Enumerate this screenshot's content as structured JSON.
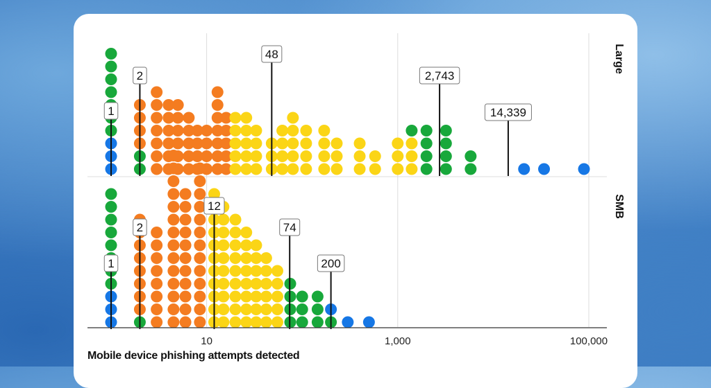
{
  "chart_data": {
    "type": "dot-histogram",
    "xlabel": "Mobile device phishing attempts detected",
    "x_scale": "log10",
    "xlim": [
      1,
      100000
    ],
    "x_ticks": [
      {
        "value": 10,
        "label": "10"
      },
      {
        "value": 1000,
        "label": "1,000"
      },
      {
        "value": 100000,
        "label": "100,000"
      }
    ],
    "colors": {
      "green": "#18a83b",
      "blue": "#1677e5",
      "orange": "#f47c20",
      "yellow": "#fbd516",
      "gridline": "#dcdcdc",
      "axis": "#333333",
      "marker": "#111111"
    },
    "panels": [
      {
        "name": "Large",
        "markers": [
          {
            "value": 1,
            "label": "1"
          },
          {
            "value": 2,
            "label": "2"
          },
          {
            "value": 48,
            "label": "48"
          },
          {
            "value": 2743,
            "label": "2,743"
          },
          {
            "value": 14339,
            "label": "14,339"
          }
        ],
        "columns": [
          {
            "x": 1,
            "stack": [
              "blue",
              "blue",
              "blue",
              "green",
              "green",
              "green",
              "green",
              "green",
              "green",
              "green"
            ]
          },
          {
            "x": 2,
            "stack": [
              "green",
              "green",
              "orange",
              "orange",
              "orange",
              "orange"
            ]
          },
          {
            "x": 3,
            "stack": [
              "orange",
              "orange",
              "orange",
              "orange",
              "orange",
              "orange",
              "orange"
            ]
          },
          {
            "x": 4,
            "stack": [
              "orange",
              "orange",
              "orange",
              "orange",
              "orange",
              "orange"
            ]
          },
          {
            "x": 5,
            "stack": [
              "orange",
              "orange",
              "orange",
              "orange",
              "orange",
              "orange"
            ]
          },
          {
            "x": 6.5,
            "stack": [
              "orange",
              "orange",
              "orange",
              "orange",
              "orange"
            ]
          },
          {
            "x": 8,
            "stack": [
              "orange",
              "orange",
              "orange",
              "orange"
            ]
          },
          {
            "x": 10,
            "stack": [
              "orange",
              "orange",
              "orange",
              "orange"
            ]
          },
          {
            "x": 13,
            "stack": [
              "orange",
              "orange",
              "orange",
              "orange",
              "orange",
              "orange",
              "orange"
            ]
          },
          {
            "x": 16,
            "stack": [
              "orange",
              "orange",
              "orange",
              "orange",
              "orange"
            ]
          },
          {
            "x": 20,
            "stack": [
              "yellow",
              "yellow",
              "yellow",
              "yellow",
              "yellow"
            ]
          },
          {
            "x": 26,
            "stack": [
              "yellow",
              "yellow",
              "yellow",
              "yellow",
              "yellow"
            ]
          },
          {
            "x": 33,
            "stack": [
              "yellow",
              "yellow",
              "yellow",
              "yellow"
            ]
          },
          {
            "x": 48,
            "stack": [
              "yellow",
              "yellow",
              "yellow"
            ]
          },
          {
            "x": 62,
            "stack": [
              "yellow",
              "yellow",
              "yellow",
              "yellow"
            ]
          },
          {
            "x": 80,
            "stack": [
              "yellow",
              "yellow",
              "yellow",
              "yellow",
              "yellow"
            ]
          },
          {
            "x": 110,
            "stack": [
              "yellow",
              "yellow",
              "yellow",
              "yellow"
            ]
          },
          {
            "x": 170,
            "stack": [
              "yellow",
              "yellow",
              "yellow",
              "yellow"
            ]
          },
          {
            "x": 230,
            "stack": [
              "yellow",
              "yellow",
              "yellow"
            ]
          },
          {
            "x": 400,
            "stack": [
              "yellow",
              "yellow",
              "yellow"
            ]
          },
          {
            "x": 580,
            "stack": [
              "yellow",
              "yellow"
            ]
          },
          {
            "x": 1000,
            "stack": [
              "yellow",
              "yellow",
              "yellow"
            ]
          },
          {
            "x": 1400,
            "stack": [
              "yellow",
              "yellow",
              "yellow",
              "green"
            ]
          },
          {
            "x": 2000,
            "stack": [
              "green",
              "green",
              "green",
              "green"
            ]
          },
          {
            "x": 3200,
            "stack": [
              "green",
              "green",
              "green",
              "green"
            ]
          },
          {
            "x": 5800,
            "stack": [
              "green",
              "green"
            ]
          },
          {
            "x": 21000,
            "stack": [
              "blue"
            ]
          },
          {
            "x": 34000,
            "stack": [
              "blue"
            ]
          },
          {
            "x": 89000,
            "stack": [
              "blue"
            ]
          }
        ]
      },
      {
        "name": "SMB",
        "markers": [
          {
            "value": 1,
            "label": "1"
          },
          {
            "value": 2,
            "label": "2"
          },
          {
            "value": 12,
            "label": "12"
          },
          {
            "value": 74,
            "label": "74"
          },
          {
            "value": 200,
            "label": "200"
          }
        ],
        "columns": [
          {
            "x": 1,
            "stack": [
              "blue",
              "blue",
              "blue",
              "green",
              "green",
              "green",
              "green",
              "green",
              "green",
              "green",
              "green"
            ]
          },
          {
            "x": 2,
            "stack": [
              "green",
              "orange",
              "orange",
              "orange",
              "orange",
              "orange",
              "orange",
              "orange",
              "orange"
            ]
          },
          {
            "x": 3,
            "stack": [
              "orange",
              "orange",
              "orange",
              "orange",
              "orange",
              "orange",
              "orange",
              "orange"
            ]
          },
          {
            "x": 4.5,
            "stack": [
              "orange",
              "orange",
              "orange",
              "orange",
              "orange",
              "orange",
              "orange",
              "orange",
              "orange",
              "orange",
              "orange",
              "orange",
              "orange",
              "orange"
            ]
          },
          {
            "x": 6,
            "stack": [
              "orange",
              "orange",
              "orange",
              "orange",
              "orange",
              "orange",
              "orange",
              "orange",
              "orange",
              "orange",
              "orange"
            ]
          },
          {
            "x": 8.5,
            "stack": [
              "orange",
              "orange",
              "orange",
              "orange",
              "orange",
              "orange",
              "orange",
              "orange",
              "orange",
              "orange",
              "orange",
              "orange",
              "orange"
            ]
          },
          {
            "x": 12,
            "stack": [
              "yellow",
              "yellow",
              "yellow",
              "yellow",
              "yellow",
              "yellow",
              "yellow",
              "yellow",
              "yellow",
              "yellow",
              "yellow"
            ]
          },
          {
            "x": 15,
            "stack": [
              "yellow",
              "yellow",
              "yellow",
              "yellow",
              "yellow",
              "yellow",
              "yellow",
              "yellow",
              "yellow",
              "yellow"
            ]
          },
          {
            "x": 20,
            "stack": [
              "yellow",
              "yellow",
              "yellow",
              "yellow",
              "yellow",
              "yellow",
              "yellow",
              "yellow",
              "yellow"
            ]
          },
          {
            "x": 26,
            "stack": [
              "yellow",
              "yellow",
              "yellow",
              "yellow",
              "yellow",
              "yellow",
              "yellow",
              "yellow"
            ]
          },
          {
            "x": 33,
            "stack": [
              "yellow",
              "yellow",
              "yellow",
              "yellow",
              "yellow",
              "yellow",
              "yellow"
            ]
          },
          {
            "x": 42,
            "stack": [
              "yellow",
              "yellow",
              "yellow",
              "yellow",
              "yellow",
              "yellow"
            ]
          },
          {
            "x": 55,
            "stack": [
              "yellow",
              "yellow",
              "yellow",
              "yellow",
              "yellow"
            ]
          },
          {
            "x": 75,
            "stack": [
              "green",
              "green",
              "green",
              "green"
            ]
          },
          {
            "x": 100,
            "stack": [
              "green",
              "green",
              "green"
            ]
          },
          {
            "x": 145,
            "stack": [
              "green",
              "green",
              "green"
            ]
          },
          {
            "x": 200,
            "stack": [
              "green",
              "blue"
            ]
          },
          {
            "x": 300,
            "stack": [
              "blue"
            ]
          },
          {
            "x": 500,
            "stack": [
              "blue"
            ]
          }
        ]
      }
    ]
  }
}
